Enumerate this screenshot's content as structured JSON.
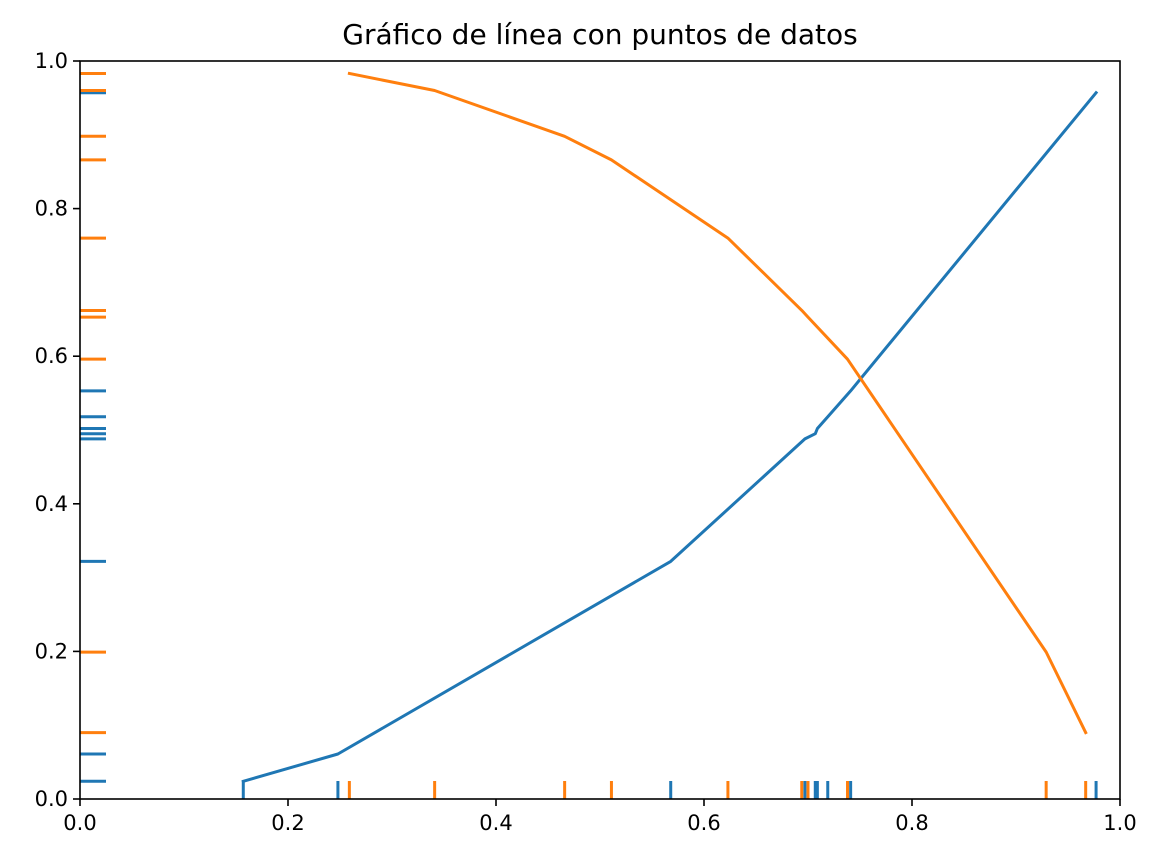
{
  "chart_data": {
    "type": "line",
    "title": "Gráfico de línea con puntos de datos",
    "xlabel": "",
    "ylabel": "",
    "xlim": [
      0.0,
      1.0
    ],
    "ylim": [
      0.0,
      1.0
    ],
    "x_ticks": [
      "0.0",
      "0.2",
      "0.4",
      "0.6",
      "0.8",
      "1.0"
    ],
    "y_ticks": [
      "0.0",
      "0.2",
      "0.4",
      "0.6",
      "0.8",
      "1.0"
    ],
    "grid": false,
    "legend": "none",
    "rug": true,
    "series": [
      {
        "color": "#1f77b4",
        "x": [
          0.157,
          0.248,
          0.568,
          0.697,
          0.707,
          0.709,
          0.719,
          0.741,
          0.977
        ],
        "y": [
          0.024,
          0.061,
          0.322,
          0.488,
          0.495,
          0.502,
          0.518,
          0.553,
          0.957
        ]
      },
      {
        "color": "#ff7f0e",
        "x": [
          0.259,
          0.341,
          0.466,
          0.511,
          0.623,
          0.694,
          0.7,
          0.738,
          0.929,
          0.967
        ],
        "y": [
          0.983,
          0.96,
          0.898,
          0.866,
          0.76,
          0.662,
          0.653,
          0.596,
          0.199,
          0.09
        ]
      }
    ]
  }
}
